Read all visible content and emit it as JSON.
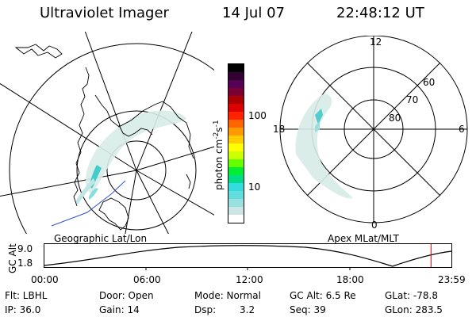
{
  "header": {
    "instrument": "Ultraviolet Imager",
    "date": "14 Jul 07",
    "time": "22:48:12 UT"
  },
  "colorbar": {
    "unit_label": "photon cm",
    "unit_exp1": "-2",
    "unit_s": "s",
    "unit_exp2": "-1",
    "ticks": [
      "100",
      "10"
    ],
    "colors": [
      "#000000",
      "#330033",
      "#550055",
      "#7a0033",
      "#aa0000",
      "#dd0000",
      "#ff2200",
      "#ff6600",
      "#ff9900",
      "#ffcc00",
      "#ffff00",
      "#ccff00",
      "#66ff00",
      "#00ee33",
      "#00dd88",
      "#33dddd",
      "#66dddd",
      "#99e0e0",
      "#cce6e6",
      "#ffffff"
    ]
  },
  "geographic_panel": {
    "label": "Geographic Lat/Lon"
  },
  "apex_panel": {
    "label": "Apex  MLat/MLT",
    "mlt_labels": {
      "top": "12",
      "left": "18",
      "right": "6",
      "bottom": "0"
    },
    "lat_labels": [
      "60",
      "70",
      "80"
    ]
  },
  "altitude_plot": {
    "ylabel": "GC Alt",
    "yticks": [
      "9.0",
      "1.8"
    ],
    "xticks": [
      "00:00",
      "06:00",
      "12:00",
      "18:00",
      "23:59"
    ],
    "current_time_color": "#cc0000",
    "current_time_hours": 22.8
  },
  "info": {
    "flt": "Flt: LBHL",
    "door": "Door: Open",
    "mode": "Mode: Normal",
    "gcalt": "GC Alt: 6.5 Re",
    "glat": "GLat: -78.8",
    "ip": "IP: 36.0",
    "gain": "Gain: 14",
    "dsp_label": "Dsp:",
    "dsp_value": "3.2",
    "seq": "Seq: 39",
    "glon": "GLon: 283.5"
  }
}
